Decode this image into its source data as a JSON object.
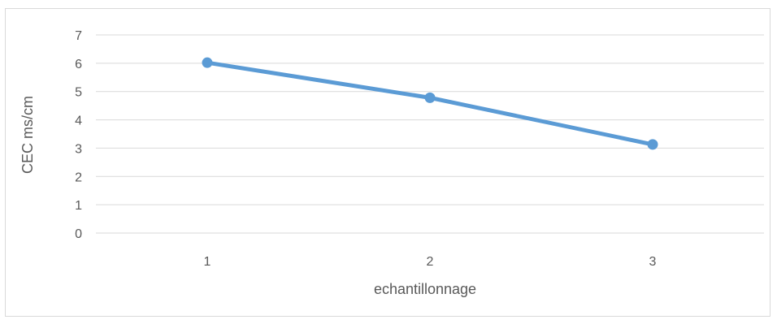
{
  "chart_data": {
    "type": "line",
    "title": "",
    "xlabel": "echantillonnage",
    "ylabel": "CEC ms/cm",
    "categories": [
      "1",
      "2",
      "3"
    ],
    "ylim": [
      0,
      7
    ],
    "yticks": [
      "0",
      "1",
      "2",
      "3",
      "4",
      "5",
      "6",
      "7"
    ],
    "grid": true,
    "legend": "none",
    "series": [
      {
        "values": [
          6.02,
          4.78,
          3.13
        ],
        "color": "#5b9bd5"
      }
    ]
  }
}
